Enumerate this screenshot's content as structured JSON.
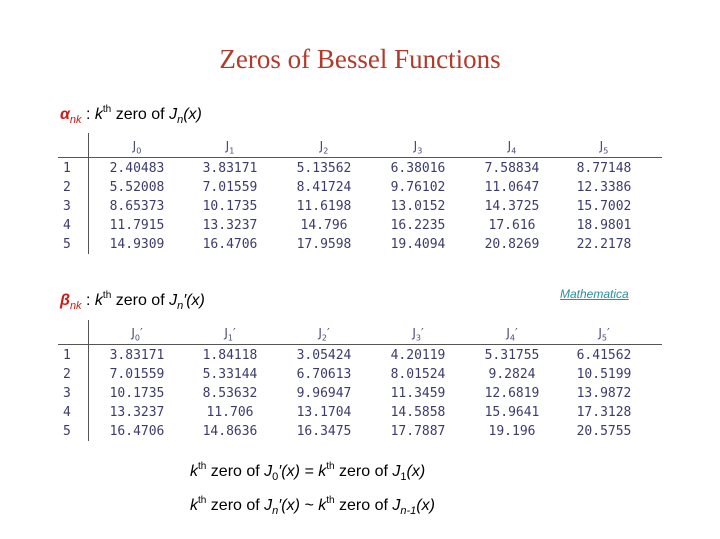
{
  "title": "Zeros of Bessel Functions",
  "heading_1": [
    "α",
    "nk",
    ":",
    "k",
    "th",
    "zero of",
    "J",
    "n",
    "(x)"
  ],
  "table_1": {
    "columns": [
      {
        "text": "J",
        "sub": "0"
      },
      {
        "text": "J",
        "sub": "1"
      },
      {
        "text": "J",
        "sub": "2"
      },
      {
        "text": "J",
        "sub": "3"
      },
      {
        "text": "J",
        "sub": "4"
      },
      {
        "text": "J",
        "sub": "5"
      }
    ],
    "rows": [
      {
        "k": "1",
        "values": [
          "2.40483",
          "3.83171",
          "5.13562",
          "6.38016",
          "7.58834",
          "8.77148"
        ]
      },
      {
        "k": "2",
        "values": [
          "5.52008",
          "7.01559",
          "8.41724",
          "9.76102",
          "11.0647",
          "12.3386"
        ]
      },
      {
        "k": "3",
        "values": [
          "8.65373",
          "10.1735",
          "11.6198",
          "13.0152",
          "14.3725",
          "15.7002"
        ]
      },
      {
        "k": "4",
        "values": [
          "11.7915",
          "13.3237",
          "14.796",
          "16.2235",
          "17.616",
          "18.9801"
        ]
      },
      {
        "k": "5",
        "values": [
          "14.9309",
          "16.4706",
          "17.9598",
          "19.4094",
          "20.8269",
          "22.2178"
        ]
      }
    ]
  },
  "link": "Mathematica",
  "heading_2": [
    "β",
    "nk",
    ":",
    "k",
    "th",
    "zero of",
    "J",
    "n",
    "′(x)"
  ],
  "table_2": {
    "columns": [
      {
        "text": "J",
        "sub": "0",
        "mark": "′"
      },
      {
        "text": "J",
        "sub": "1",
        "mark": "′"
      },
      {
        "text": "J",
        "sub": "2",
        "mark": "′"
      },
      {
        "text": "J",
        "sub": "3",
        "mark": "′"
      },
      {
        "text": "J",
        "sub": "4",
        "mark": "′"
      },
      {
        "text": "J",
        "sub": "5",
        "mark": "′"
      }
    ],
    "rows": [
      {
        "k": "1",
        "values": [
          "3.83171",
          "1.84118",
          "3.05424",
          "4.20119",
          "5.31755",
          "6.41562"
        ]
      },
      {
        "k": "2",
        "values": [
          "7.01559",
          "5.33144",
          "6.70613",
          "8.01524",
          "9.2824",
          "10.5199"
        ]
      },
      {
        "k": "3",
        "values": [
          "10.1735",
          "8.53632",
          "9.96947",
          "11.3459",
          "12.6819",
          "13.9872"
        ]
      },
      {
        "k": "4",
        "values": [
          "13.3237",
          "11.706",
          "13.1704",
          "14.5858",
          "15.9641",
          "17.3128"
        ]
      },
      {
        "k": "5",
        "values": [
          "16.4706",
          "14.8636",
          "16.3475",
          "17.7887",
          "19.196",
          "20.5755"
        ]
      }
    ]
  },
  "relation_1": [
    "k",
    "th",
    "zero of",
    "J",
    "0",
    "′(x) =",
    "k",
    "th",
    "zero of",
    "J",
    "1",
    "(x)"
  ],
  "relation_2": [
    "k",
    "th",
    "zero of",
    "J",
    "n",
    "′(x) ~",
    "k",
    "th",
    "zero of",
    "J",
    "n-1",
    "(x)"
  ]
}
